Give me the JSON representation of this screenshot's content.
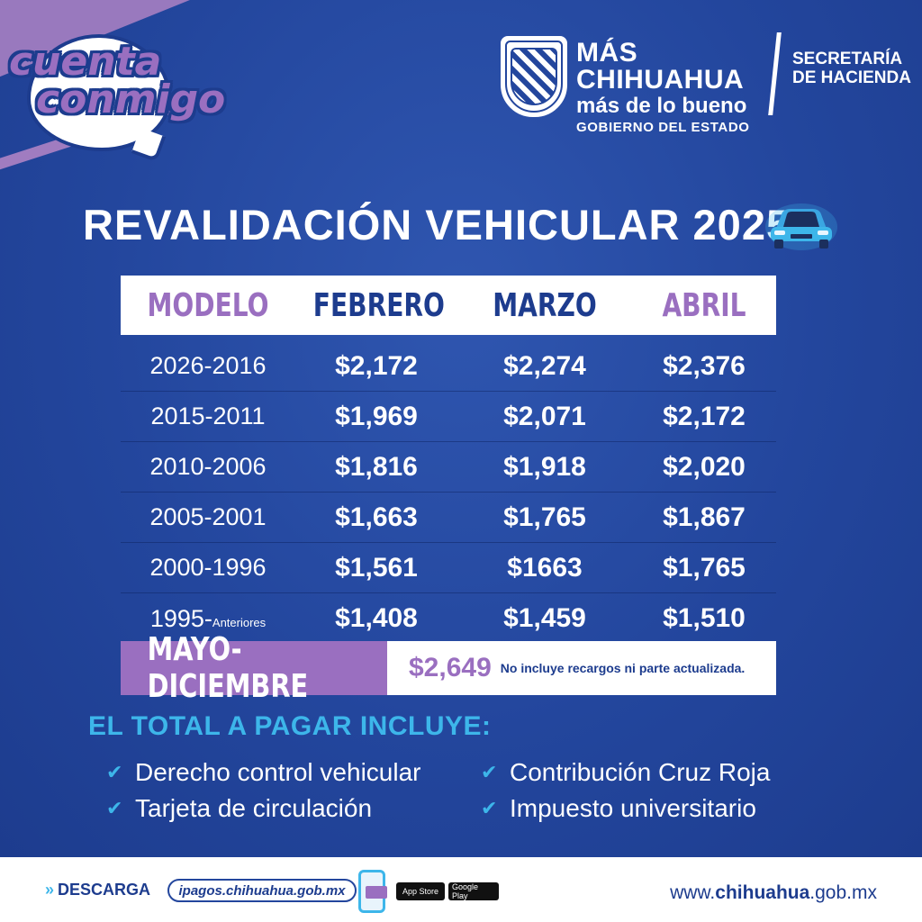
{
  "badge": {
    "line1": "cuenta",
    "line2": "conmigo"
  },
  "header": {
    "seal_label": "Estado de Chihuahua seal",
    "gov_line1": "MÁS CHIHUAHUA",
    "gov_line2": "más de lo bueno",
    "gov_line3": "GOBIERNO DEL ESTADO",
    "dept_line1": "SECRETARÍA",
    "dept_line2": "DE HACIENDA"
  },
  "title": "REVALIDACIÓN VEHICULAR 2025",
  "table": {
    "headers": [
      {
        "label": "MODELO",
        "color": "#9a6fc0"
      },
      {
        "label": "FEBRERO",
        "color": "#1d3c8e"
      },
      {
        "label": "MARZO",
        "color": "#1d3c8e"
      },
      {
        "label": "ABRIL",
        "color": "#9a6fc0"
      }
    ],
    "rows": [
      {
        "model": "2026-2016",
        "model_suffix": "",
        "feb": "$2,172",
        "mar": "$2,274",
        "abr": "$2,376"
      },
      {
        "model": "2015-2011",
        "model_suffix": "",
        "feb": "$1,969",
        "mar": "$2,071",
        "abr": "$2,172"
      },
      {
        "model": "2010-2006",
        "model_suffix": "",
        "feb": "$1,816",
        "mar": "$1,918",
        "abr": "$2,020"
      },
      {
        "model": "2005-2001",
        "model_suffix": "",
        "feb": "$1,663",
        "mar": "$1,765",
        "abr": "$1,867"
      },
      {
        "model": "2000-1996",
        "model_suffix": "",
        "feb": "$1,561",
        "mar": "$1663",
        "abr": "$1,765"
      },
      {
        "model": "1995-",
        "model_suffix": "Anteriores",
        "feb": "$1,408",
        "mar": "$1,459",
        "abr": "$1,510"
      }
    ]
  },
  "mayo": {
    "label": "MAYO-DICIEMBRE",
    "price": "$2,649",
    "note": "No incluye recargos ni parte actualizada."
  },
  "includes": {
    "title": "EL TOTAL A PAGAR INCLUYE:",
    "left": [
      "Derecho control vehicular",
      "Tarjeta de circulación"
    ],
    "right": [
      "Contribución Cruz Roja",
      "Impuesto universitario"
    ]
  },
  "footer": {
    "download": "DESCARGA",
    "app_url": "ipagos.chihuahua.gob.mx",
    "app_store": "App Store",
    "google_play": "Google Play",
    "site_prefix": "www.",
    "site_bold": "chihuahua",
    "site_suffix": ".gob.mx"
  },
  "colors": {
    "brand_blue": "#23469d",
    "purple": "#9a6fc0",
    "cyan": "#3db6ea",
    "white": "#ffffff"
  }
}
